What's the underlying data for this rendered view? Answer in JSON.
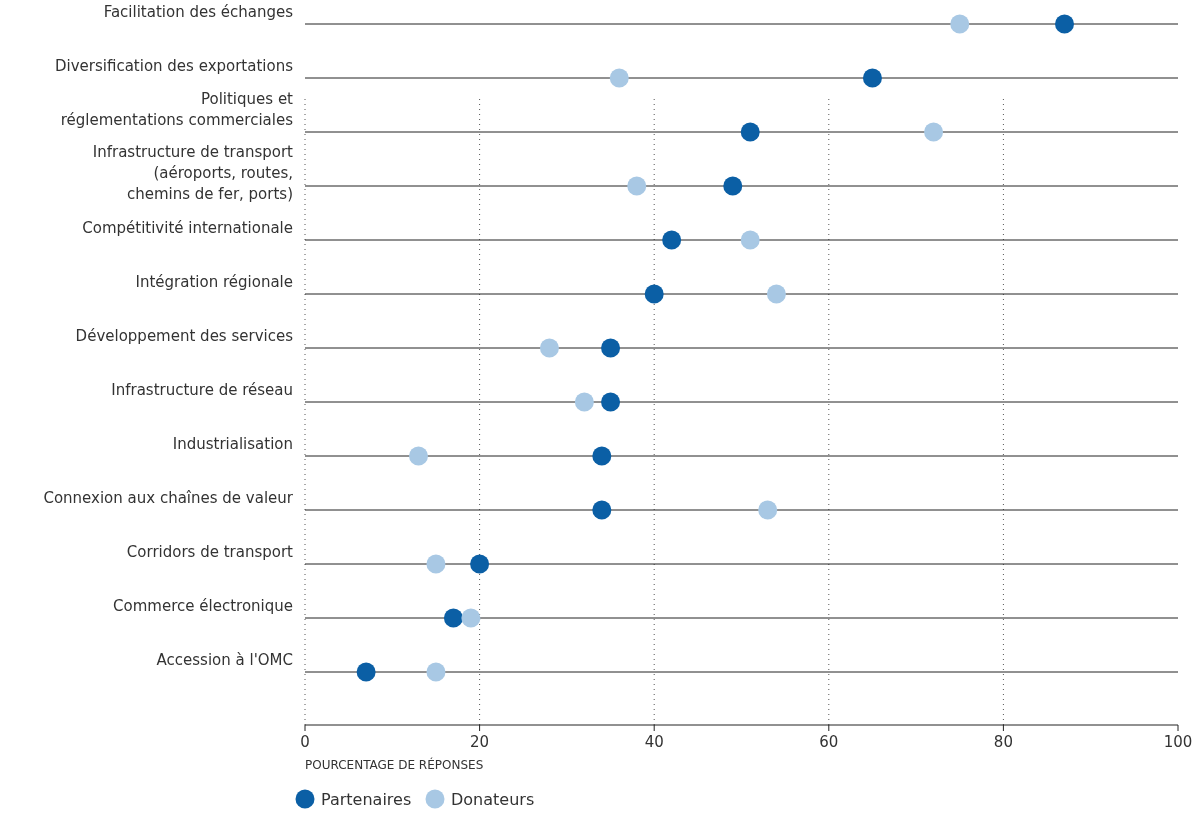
{
  "chart_data": {
    "type": "scatter",
    "orientation": "horizontal",
    "xlabel": "POURCENTAGE DE RÉPONSES",
    "categories": [
      "Facilitation des échanges",
      "Diversification des exportations",
      "Politiques et\nréglementations commerciales",
      "Infrastructure de transport\n(aéroports, routes,\nchemins de fer, ports)",
      "Compétitivité internationale",
      "Intégration régionale",
      "Développement des services",
      "Infrastructure de réseau",
      "Industrialisation",
      "Connexion aux chaînes de valeur",
      "Corridors de transport",
      "Commerce électronique",
      "Accession à l'OMC"
    ],
    "series": [
      {
        "name": "Partenaires",
        "color": "#0b5fa5",
        "values": [
          87,
          65,
          51,
          49,
          42,
          40,
          35,
          35,
          34,
          34,
          20,
          17,
          7
        ]
      },
      {
        "name": "Donateurs",
        "color": "#a8c8e4",
        "values": [
          75,
          36,
          72,
          38,
          51,
          54,
          28,
          32,
          13,
          53,
          15,
          19,
          15
        ]
      }
    ],
    "xlim": [
      0,
      100
    ],
    "xticks": [
      0,
      20,
      40,
      60,
      80,
      100
    ],
    "grid": true,
    "legend": "bottom left",
    "marker": "circle"
  }
}
